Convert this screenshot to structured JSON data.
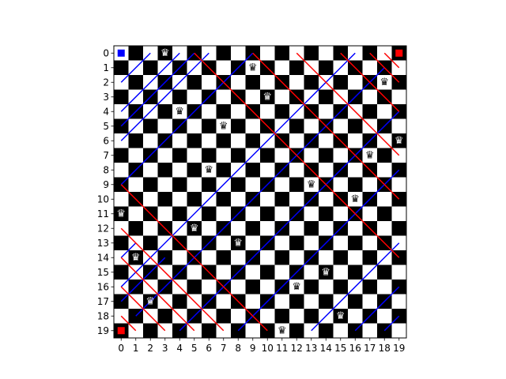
{
  "board": {
    "size": 20,
    "x_tick_labels": [
      "0",
      "1",
      "2",
      "3",
      "4",
      "5",
      "6",
      "7",
      "8",
      "9",
      "10",
      "11",
      "12",
      "13",
      "14",
      "15",
      "16",
      "17",
      "18",
      "19"
    ],
    "y_tick_labels": [
      "0",
      "1",
      "2",
      "3",
      "4",
      "5",
      "6",
      "7",
      "8",
      "9",
      "10",
      "11",
      "12",
      "13",
      "14",
      "15",
      "16",
      "17",
      "18",
      "19"
    ],
    "light_square_color": "#ffffff",
    "dark_square_color": "#000000",
    "queen_glyph": "♛",
    "queen_icon": "queen-icon",
    "queens": [
      {
        "row": 0,
        "col": 3
      },
      {
        "row": 1,
        "col": 9
      },
      {
        "row": 2,
        "col": 18
      },
      {
        "row": 3,
        "col": 10
      },
      {
        "row": 4,
        "col": 4
      },
      {
        "row": 5,
        "col": 7
      },
      {
        "row": 6,
        "col": 19
      },
      {
        "row": 7,
        "col": 17
      },
      {
        "row": 8,
        "col": 6
      },
      {
        "row": 9,
        "col": 13
      },
      {
        "row": 10,
        "col": 16
      },
      {
        "row": 11,
        "col": 0
      },
      {
        "row": 12,
        "col": 5
      },
      {
        "row": 13,
        "col": 8
      },
      {
        "row": 14,
        "col": 1
      },
      {
        "row": 15,
        "col": 14
      },
      {
        "row": 16,
        "col": 12
      },
      {
        "row": 17,
        "col": 2
      },
      {
        "row": 18,
        "col": 15
      },
      {
        "row": 19,
        "col": 11
      }
    ],
    "corner_markers": [
      {
        "row": 0,
        "col": 0,
        "color": "#0000ff"
      },
      {
        "row": 0,
        "col": 19,
        "color": "#ff0000"
      },
      {
        "row": 19,
        "col": 0,
        "color": "#ff0000"
      }
    ],
    "blue_diagonals": {
      "color": "#0000ff",
      "segments": [
        [
          [
            2,
            0
          ],
          [
            0,
            2
          ]
        ],
        [
          [
            4,
            0
          ],
          [
            0,
            4
          ]
        ],
        [
          [
            5,
            0
          ],
          [
            0,
            5
          ]
        ],
        [
          [
            6,
            0
          ],
          [
            0,
            6
          ]
        ],
        [
          [
            9,
            0
          ],
          [
            0,
            9
          ]
        ],
        [
          [
            16,
            0
          ],
          [
            0,
            16
          ]
        ],
        [
          [
            18,
            1
          ],
          [
            1,
            18
          ]
        ],
        [
          [
            19,
            4
          ],
          [
            4,
            19
          ]
        ],
        [
          [
            19,
            8
          ],
          [
            8,
            19
          ]
        ],
        [
          [
            19,
            13
          ],
          [
            13,
            19
          ]
        ],
        [
          [
            19,
            16
          ],
          [
            16,
            19
          ]
        ],
        [
          [
            19,
            18
          ],
          [
            18,
            19
          ]
        ],
        [
          [
            17,
            0
          ],
          [
            14,
            3
          ]
        ],
        [
          [
            14,
            0
          ],
          [
            13,
            1
          ]
        ]
      ]
    },
    "red_diagonals": {
      "color": "#ff0000",
      "segments": [
        [
          [
            0,
            5
          ],
          [
            14,
            19
          ]
        ],
        [
          [
            0,
            9
          ],
          [
            10,
            19
          ]
        ],
        [
          [
            0,
            12
          ],
          [
            7,
            19
          ]
        ],
        [
          [
            0,
            15
          ],
          [
            4,
            19
          ]
        ],
        [
          [
            0,
            17
          ],
          [
            2,
            19
          ]
        ],
        [
          [
            0,
            18
          ],
          [
            1,
            19
          ]
        ],
        [
          [
            9,
            0
          ],
          [
            19,
            10
          ]
        ],
        [
          [
            12,
            0
          ],
          [
            19,
            7
          ]
        ],
        [
          [
            14,
            0
          ],
          [
            19,
            5
          ]
        ],
        [
          [
            16,
            0
          ],
          [
            19,
            3
          ]
        ],
        [
          [
            18,
            0
          ],
          [
            19,
            1
          ]
        ]
      ]
    }
  }
}
